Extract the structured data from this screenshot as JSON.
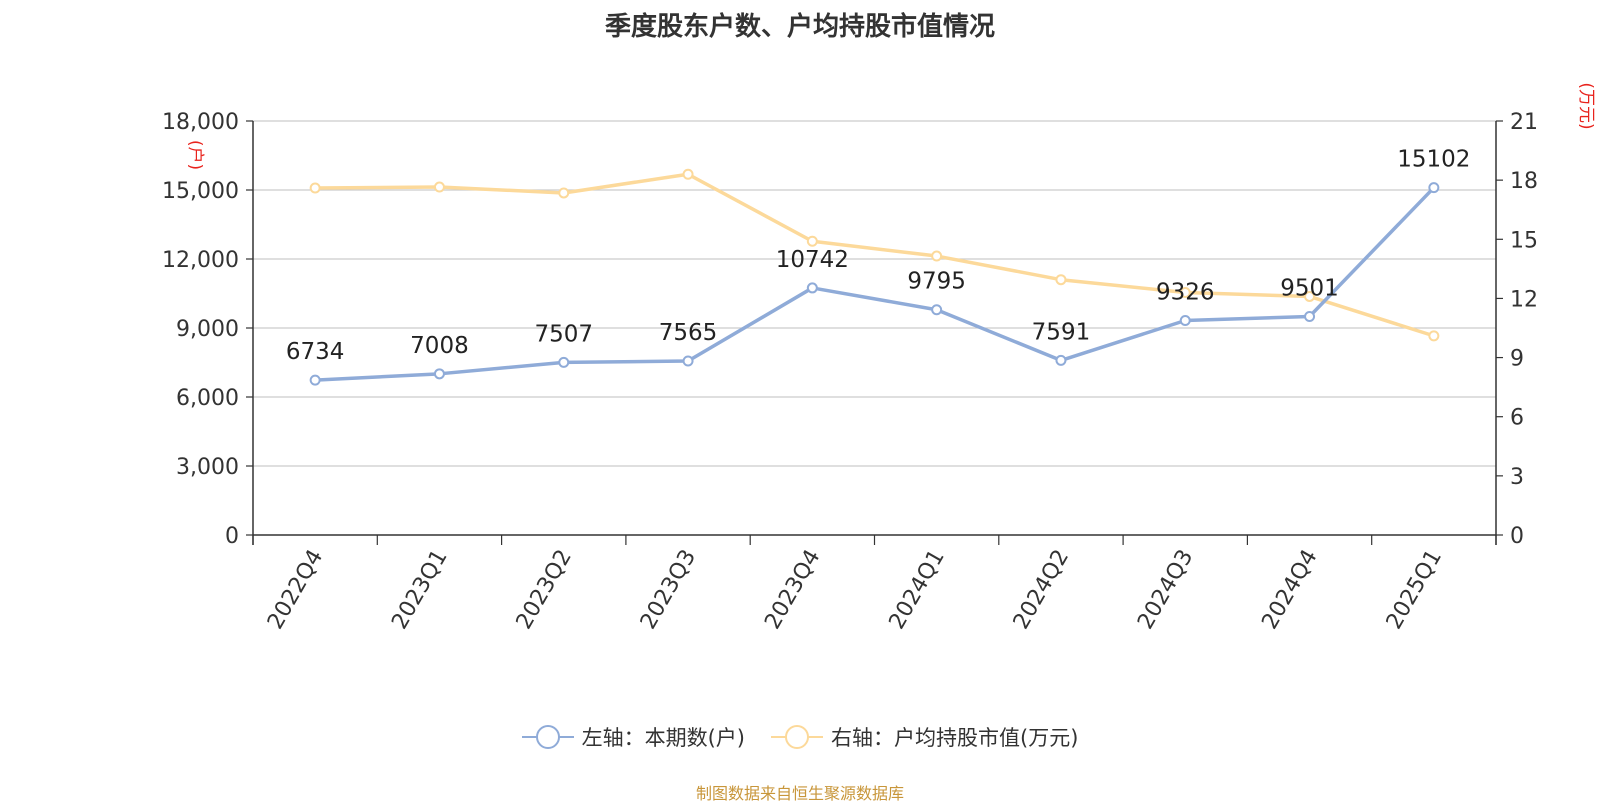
{
  "title": "季度股东户数、户均持股市值情况",
  "source_note": "制图数据来自恒生聚源数据库",
  "colors": {
    "left_series": "#8fabd8",
    "right_series": "#fcd99a",
    "axis_unit": "#e8231d",
    "source": "#c8963a"
  },
  "legend": [
    {
      "label": "左轴：本期数(户)",
      "color": "#8fabd8"
    },
    {
      "label": "右轴：户均持股市值(万元)",
      "color": "#fcd99a"
    }
  ],
  "chart_data": {
    "type": "line",
    "categories": [
      "2022Q4",
      "2023Q1",
      "2023Q2",
      "2023Q3",
      "2023Q4",
      "2024Q1",
      "2024Q2",
      "2024Q3",
      "2024Q4",
      "2025Q1"
    ],
    "left_axis": {
      "unit": "(户)",
      "ylim": [
        0,
        18000
      ],
      "ticks": [
        "0",
        "3,000",
        "6,000",
        "9,000",
        "12,000",
        "15,000",
        "18,000"
      ]
    },
    "right_axis": {
      "unit": "(万元)",
      "ylim": [
        0,
        21
      ],
      "ticks": [
        "0",
        "3",
        "6",
        "9",
        "12",
        "15",
        "18",
        "21"
      ]
    },
    "series": [
      {
        "name": "左轴：本期数(户)",
        "axis": "left",
        "color": "#8fabd8",
        "values": [
          6734,
          7008,
          7507,
          7565,
          10742,
          9795,
          7591,
          9326,
          9501,
          15102
        ],
        "labels": [
          "6734",
          "7008",
          "7507",
          "7565",
          "10742",
          "9795",
          "7591",
          "9326",
          "9501",
          "15102"
        ]
      },
      {
        "name": "右轴：户均持股市值(万元)",
        "axis": "right",
        "color": "#fcd99a",
        "values": [
          17.6,
          17.65,
          17.35,
          18.3,
          14.9,
          14.15,
          12.95,
          12.3,
          12.1,
          10.1
        ]
      }
    ],
    "grid": true,
    "legend_position": "bottom"
  }
}
